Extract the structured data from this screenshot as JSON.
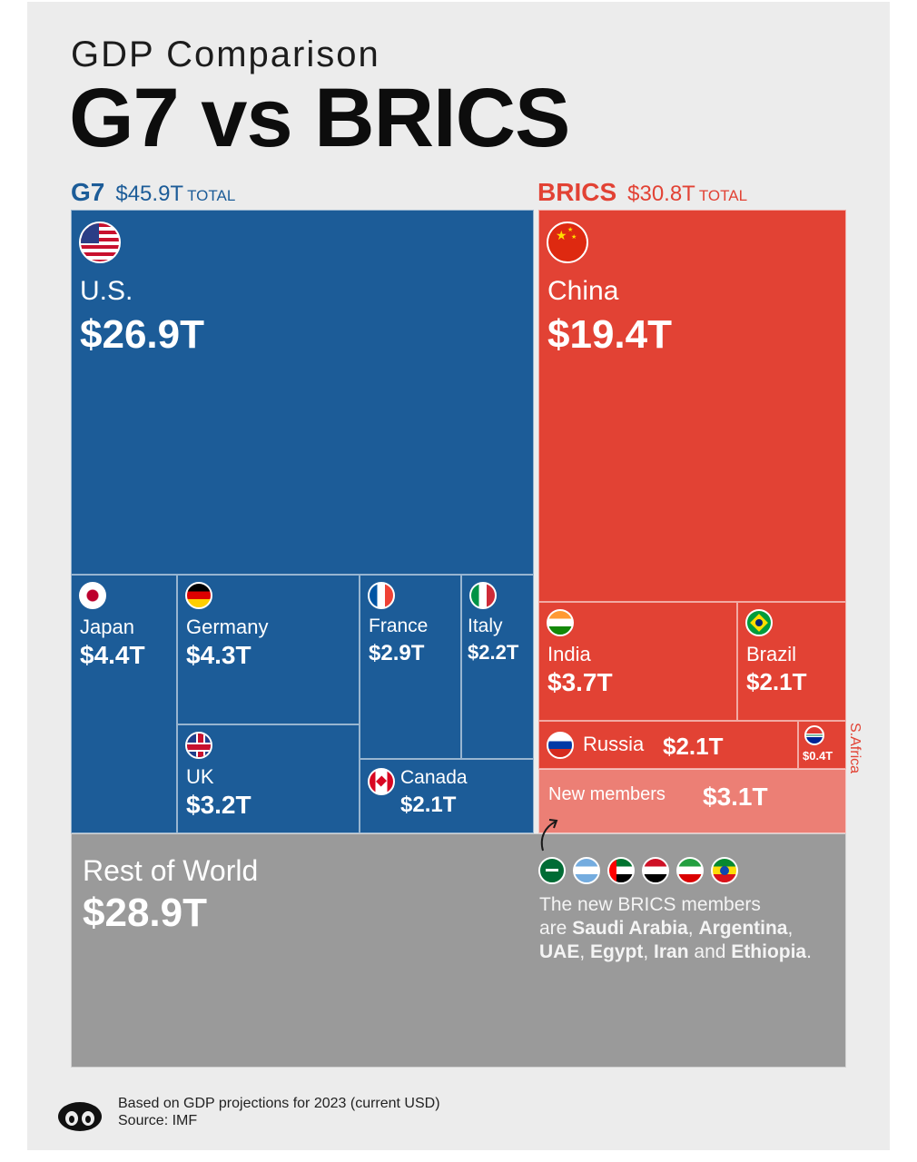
{
  "title": "GDP Comparison",
  "subtitle": "G7 vs BRICS",
  "g7_header": {
    "name": "G7",
    "total": "$45.9T",
    "label": "TOTAL",
    "color": "#1c5c98"
  },
  "brics_header": {
    "name": "BRICS",
    "total": "$30.8T",
    "label": "TOTAL",
    "color": "#e24234"
  },
  "chart_data": {
    "type": "treemap",
    "unit": "trillion USD",
    "groups": [
      {
        "name": "G7",
        "total": 45.9,
        "items": [
          {
            "label": "U.S.",
            "value": 26.9,
            "value_label": "$26.9T"
          },
          {
            "label": "Japan",
            "value": 4.4,
            "value_label": "$4.4T"
          },
          {
            "label": "Germany",
            "value": 4.3,
            "value_label": "$4.3T"
          },
          {
            "label": "UK",
            "value": 3.2,
            "value_label": "$3.2T"
          },
          {
            "label": "France",
            "value": 2.9,
            "value_label": "$2.9T"
          },
          {
            "label": "Italy",
            "value": 2.2,
            "value_label": "$2.2T"
          },
          {
            "label": "Canada",
            "value": 2.1,
            "value_label": "$2.1T"
          }
        ]
      },
      {
        "name": "BRICS",
        "total": 30.8,
        "items": [
          {
            "label": "China",
            "value": 19.4,
            "value_label": "$19.4T"
          },
          {
            "label": "India",
            "value": 3.7,
            "value_label": "$3.7T"
          },
          {
            "label": "Brazil",
            "value": 2.1,
            "value_label": "$2.1T"
          },
          {
            "label": "Russia",
            "value": 2.1,
            "value_label": "$2.1T"
          },
          {
            "label": "S.Africa",
            "value": 0.4,
            "value_label": "$0.4T"
          },
          {
            "label": "New members",
            "value": 3.1,
            "value_label": "$3.1T"
          }
        ]
      },
      {
        "name": "Rest of World",
        "items": [
          {
            "label": "Rest of World",
            "value": 28.9,
            "value_label": "$28.9T"
          }
        ]
      }
    ]
  },
  "note": {
    "intro": "The new BRICS members",
    "are": "are",
    "members": [
      "Saudi Arabia",
      "Argentina",
      "UAE",
      "Egypt",
      "Iran",
      "Ethiopia"
    ],
    "and": "and"
  },
  "footer": {
    "basis": "Based on GDP projections for 2023 (current USD)",
    "source": "Source: IMF"
  }
}
